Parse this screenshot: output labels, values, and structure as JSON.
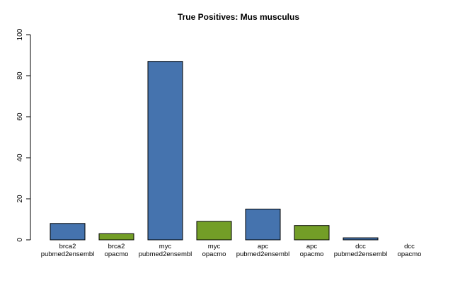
{
  "chart_data": {
    "type": "bar",
    "title": "True Positives: Mus musculus",
    "xlabel": "",
    "ylabel": "",
    "ylim": [
      0,
      100
    ],
    "yticks": [
      0,
      20,
      40,
      60,
      80,
      100
    ],
    "categories": [
      {
        "line1": "brca2",
        "line2": "pubmed2ensembl"
      },
      {
        "line1": "brca2",
        "line2": "opacmo"
      },
      {
        "line1": "myc",
        "line2": "pubmed2ensembl"
      },
      {
        "line1": "myc",
        "line2": "opacmo"
      },
      {
        "line1": "apc",
        "line2": "pubmed2ensembl"
      },
      {
        "line1": "apc",
        "line2": "opacmo"
      },
      {
        "line1": "dcc",
        "line2": "pubmed2ensembl"
      },
      {
        "line1": "dcc",
        "line2": "opacmo"
      }
    ],
    "values": [
      8,
      3,
      87,
      9,
      15,
      7,
      1,
      0
    ],
    "bar_colors": [
      "#4573ae",
      "#739e27",
      "#4573ae",
      "#739e27",
      "#4573ae",
      "#739e27",
      "#4573ae",
      "#739e27"
    ],
    "grid": false,
    "legend": "none"
  }
}
